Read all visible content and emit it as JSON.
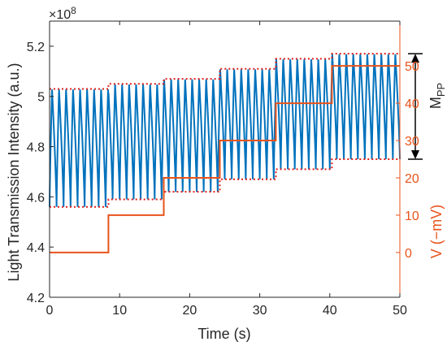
{
  "chart_data": {
    "type": "line",
    "xlabel": "Time (s)",
    "ylabel_left": "Light Transmission Intensity (a.u.)",
    "ylabel_right": "V (−mV)",
    "exponent_label": "×10",
    "exponent_power": "8",
    "annotation": "M",
    "annotation_sub": "PP",
    "xlim": [
      0,
      50
    ],
    "ylim_left": [
      4.2,
      5.3
    ],
    "ylim_right": [
      -12,
      62
    ],
    "xticks": [
      "0",
      "10",
      "20",
      "30",
      "40",
      "50"
    ],
    "yticks_left": [
      "4.2",
      "4.4",
      "4.6",
      "4.8",
      "5",
      "5.2"
    ],
    "yticks_right": [
      "0",
      "10",
      "20",
      "30",
      "40",
      "50"
    ],
    "oscillation": {
      "color": "#0072bd",
      "cycles": 50,
      "levels": [
        {
          "t_start": 0,
          "t_end": 8.4,
          "max": 5.03,
          "min": 4.56
        },
        {
          "t_start": 8.4,
          "t_end": 16.3,
          "max": 5.05,
          "min": 4.59
        },
        {
          "t_start": 16.3,
          "t_end": 24.3,
          "max": 5.07,
          "min": 4.62
        },
        {
          "t_start": 24.3,
          "t_end": 32.3,
          "max": 5.11,
          "min": 4.67
        },
        {
          "t_start": 32.3,
          "t_end": 40.3,
          "max": 5.15,
          "min": 4.71
        },
        {
          "t_start": 40.3,
          "t_end": 50,
          "max": 5.17,
          "min": 4.75
        }
      ]
    },
    "envelope": {
      "color": "#e0201b",
      "upper": [
        {
          "t_start": 0,
          "t_end": 8.4,
          "value": 5.03
        },
        {
          "t_start": 8.4,
          "t_end": 16.3,
          "value": 5.05
        },
        {
          "t_start": 16.3,
          "t_end": 24.3,
          "value": 5.07
        },
        {
          "t_start": 24.3,
          "t_end": 32.3,
          "value": 5.11
        },
        {
          "t_start": 32.3,
          "t_end": 40.3,
          "value": 5.15
        },
        {
          "t_start": 40.3,
          "t_end": 50,
          "value": 5.17
        }
      ],
      "lower": [
        {
          "t_start": 0,
          "t_end": 8.4,
          "value": 4.56
        },
        {
          "t_start": 8.4,
          "t_end": 16.3,
          "value": 4.59
        },
        {
          "t_start": 16.3,
          "t_end": 24.3,
          "value": 4.62
        },
        {
          "t_start": 24.3,
          "t_end": 32.3,
          "value": 4.67
        },
        {
          "t_start": 32.3,
          "t_end": 40.3,
          "value": 4.71
        },
        {
          "t_start": 40.3,
          "t_end": 50,
          "value": 4.75
        }
      ]
    },
    "voltage_steps": {
      "color": "#e8531b",
      "x": [
        0,
        8.4,
        8.4,
        16.3,
        16.3,
        24.3,
        24.3,
        32.3,
        32.3,
        40.3,
        40.3,
        50
      ],
      "y": [
        0,
        0,
        10,
        10,
        20,
        20,
        30,
        30,
        40,
        40,
        50,
        50
      ]
    },
    "mpp_bracket": {
      "top": 5.17,
      "bottom": 4.75
    }
  }
}
